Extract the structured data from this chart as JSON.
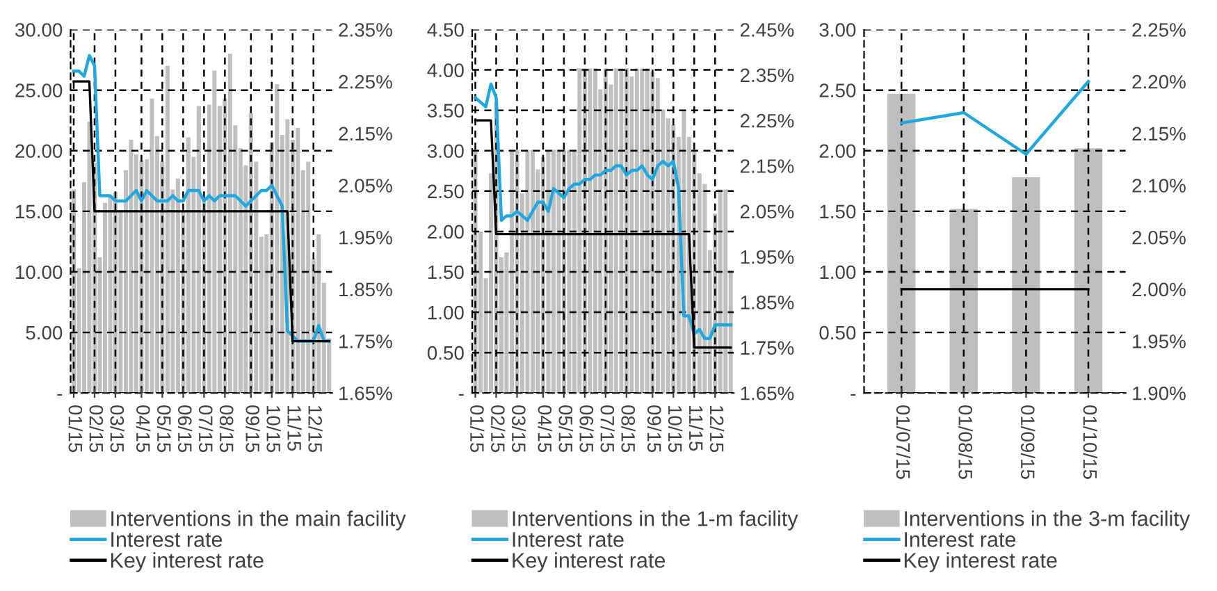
{
  "chart_data": [
    {
      "type": "bar",
      "categories": [
        "01/15",
        null,
        null,
        null,
        "02/15",
        null,
        null,
        null,
        "03/15",
        null,
        null,
        null,
        null,
        "04/15",
        null,
        null,
        null,
        "05/15",
        null,
        null,
        null,
        "06/15",
        null,
        null,
        null,
        "07/15",
        null,
        null,
        null,
        "08/15",
        null,
        null,
        null,
        null,
        "09/15",
        null,
        null,
        null,
        "10/15",
        null,
        null,
        null,
        "11/15",
        null,
        null,
        null,
        "12/15",
        null,
        null,
        null
      ],
      "series": [
        {
          "name": "Interventions in the main facility",
          "color": "#bfbfbf",
          "values": [
            16.8,
            10.3,
            17.4,
            22.4,
            19.0,
            11.2,
            15.7,
            16.2,
            16.6,
            15.0,
            18.4,
            20.9,
            19.7,
            19.2,
            19.3,
            24.3,
            21.2,
            19.1,
            27.0,
            16.8,
            17.7,
            15.0,
            21.1,
            19.5,
            23.7,
            15.8,
            23.8,
            26.6,
            23.7,
            24.3,
            28.0,
            22.1,
            20.2,
            18.8,
            23.1,
            19.1,
            12.9,
            13.1,
            20.7,
            25.5,
            21.3,
            22.6,
            20.9,
            21.9,
            18.4,
            19.1,
            11.1,
            13.1,
            9.1,
            4.5
          ]
        },
        {
          "name": "Interest rate",
          "type": "line",
          "axis": "y2",
          "color": "#1fa7e0",
          "values": [
            2.27,
            2.27,
            2.26,
            2.3,
            2.28,
            2.03,
            2.03,
            2.03,
            2.02,
            2.02,
            2.02,
            2.03,
            2.04,
            2.02,
            2.04,
            2.03,
            2.02,
            2.02,
            2.02,
            2.03,
            2.02,
            2.02,
            2.04,
            2.04,
            2.04,
            2.02,
            2.03,
            2.02,
            2.03,
            2.03,
            2.03,
            2.03,
            2.02,
            2.01,
            2.02,
            2.03,
            2.04,
            2.04,
            2.05,
            2.03,
            2.01,
            1.77,
            1.76,
            1.75,
            1.75,
            1.75,
            1.75,
            1.78,
            1.75,
            1.75
          ]
        },
        {
          "name": "Key interest rate",
          "type": "line",
          "axis": "y2",
          "color": "#000000",
          "values": [
            2.25,
            2.25,
            2.25,
            2.25,
            2.0,
            2.0,
            2.0,
            2.0,
            2.0,
            2.0,
            2.0,
            2.0,
            2.0,
            2.0,
            2.0,
            2.0,
            2.0,
            2.0,
            2.0,
            2.0,
            2.0,
            2.0,
            2.0,
            2.0,
            2.0,
            2.0,
            2.0,
            2.0,
            2.0,
            2.0,
            2.0,
            2.0,
            2.0,
            2.0,
            2.0,
            2.0,
            2.0,
            2.0,
            2.0,
            2.0,
            2.0,
            2.0,
            1.75,
            1.75,
            1.75,
            1.75,
            1.75,
            1.75,
            1.75,
            1.75
          ]
        }
      ],
      "ylim": [
        0,
        30
      ],
      "yticks": [
        {
          "value": 0,
          "label": "-"
        },
        {
          "value": 5,
          "label": "5.00"
        },
        {
          "value": 10,
          "label": "10.00"
        },
        {
          "value": 15,
          "label": "15.00"
        },
        {
          "value": 20,
          "label": "20.00"
        },
        {
          "value": 25,
          "label": "25.00"
        },
        {
          "value": 30,
          "label": "30.00"
        }
      ],
      "y2lim": [
        1.65,
        2.35
      ],
      "y2ticks": [
        {
          "value": 1.65,
          "label": "1.65%"
        },
        {
          "value": 1.75,
          "label": "1.75%"
        },
        {
          "value": 1.85,
          "label": "1.85%"
        },
        {
          "value": 1.95,
          "label": "1.95%"
        },
        {
          "value": 2.05,
          "label": "2.05%"
        },
        {
          "value": 2.15,
          "label": "2.15%"
        },
        {
          "value": 2.25,
          "label": "2.25%"
        },
        {
          "value": 2.35,
          "label": "2.35%"
        }
      ],
      "grid": true,
      "legend": "bottom"
    },
    {
      "type": "bar",
      "categories": [
        "01/15",
        null,
        null,
        null,
        "02/15",
        null,
        null,
        null,
        "03/15",
        null,
        null,
        null,
        null,
        "04/15",
        null,
        null,
        null,
        "05/15",
        null,
        null,
        null,
        "06/15",
        null,
        null,
        null,
        "07/15",
        null,
        null,
        null,
        "08/15",
        null,
        null,
        null,
        null,
        "09/15",
        null,
        null,
        null,
        "10/15",
        null,
        null,
        null,
        "11/15",
        null,
        null,
        null,
        "12/15",
        null,
        null,
        null
      ],
      "series": [
        {
          "name": "Interventions in the 1-m facility",
          "color": "#bfbfbf",
          "values": [
            3.01,
            2.0,
            1.42,
            2.72,
            3.6,
            1.68,
            1.74,
            3.01,
            3.01,
            2.47,
            3.01,
            3.01,
            2.77,
            2.92,
            3.01,
            3.01,
            3.01,
            3.01,
            3.01,
            3.01,
            4.02,
            4.02,
            4.02,
            4.02,
            3.76,
            4.02,
            3.82,
            4.02,
            4.02,
            4.02,
            3.92,
            4.02,
            4.02,
            4.02,
            3.98,
            3.9,
            3.51,
            3.4,
            3.32,
            3.17,
            3.51,
            3.17,
            3.01,
            2.72,
            2.59,
            1.77,
            2.22,
            2.52,
            2.52,
            1.52
          ]
        },
        {
          "name": "Interest rate",
          "type": "line",
          "axis": "y2",
          "color": "#1fa7e0",
          "values": [
            2.3,
            2.29,
            2.28,
            2.33,
            2.3,
            2.03,
            2.04,
            2.04,
            2.05,
            2.04,
            2.03,
            2.05,
            2.07,
            2.07,
            2.05,
            2.1,
            2.09,
            2.08,
            2.1,
            2.11,
            2.11,
            2.12,
            2.12,
            2.13,
            2.13,
            2.14,
            2.14,
            2.15,
            2.15,
            2.13,
            2.14,
            2.14,
            2.15,
            2.13,
            2.12,
            2.15,
            2.16,
            2.15,
            2.16,
            2.1,
            1.82,
            1.82,
            1.78,
            1.79,
            1.77,
            1.77,
            1.8,
            1.8,
            1.8,
            1.8
          ]
        },
        {
          "name": "Key interest rate",
          "type": "line",
          "axis": "y2",
          "color": "#000000",
          "values": [
            2.25,
            2.25,
            2.25,
            2.25,
            2.0,
            2.0,
            2.0,
            2.0,
            2.0,
            2.0,
            2.0,
            2.0,
            2.0,
            2.0,
            2.0,
            2.0,
            2.0,
            2.0,
            2.0,
            2.0,
            2.0,
            2.0,
            2.0,
            2.0,
            2.0,
            2.0,
            2.0,
            2.0,
            2.0,
            2.0,
            2.0,
            2.0,
            2.0,
            2.0,
            2.0,
            2.0,
            2.0,
            2.0,
            2.0,
            2.0,
            2.0,
            2.0,
            1.75,
            1.75,
            1.75,
            1.75,
            1.75,
            1.75,
            1.75,
            1.75
          ]
        }
      ],
      "ylim": [
        0,
        4.5
      ],
      "yticks": [
        {
          "value": 0,
          "label": "-"
        },
        {
          "value": 0.5,
          "label": "0.50"
        },
        {
          "value": 1,
          "label": "1.00"
        },
        {
          "value": 1.5,
          "label": "1.50"
        },
        {
          "value": 2,
          "label": "2.00"
        },
        {
          "value": 2.5,
          "label": "2.50"
        },
        {
          "value": 3,
          "label": "3.00"
        },
        {
          "value": 3.5,
          "label": "3.50"
        },
        {
          "value": 4,
          "label": "4.00"
        },
        {
          "value": 4.5,
          "label": "4.50"
        }
      ],
      "y2lim": [
        1.65,
        2.45
      ],
      "y2ticks": [
        {
          "value": 1.65,
          "label": "1.65%"
        },
        {
          "value": 1.75,
          "label": "1.75%"
        },
        {
          "value": 1.85,
          "label": "1.85%"
        },
        {
          "value": 1.95,
          "label": "1.95%"
        },
        {
          "value": 2.05,
          "label": "2.05%"
        },
        {
          "value": 2.15,
          "label": "2.15%"
        },
        {
          "value": 2.25,
          "label": "2.25%"
        },
        {
          "value": 2.35,
          "label": "2.35%"
        },
        {
          "value": 2.45,
          "label": "2.45%"
        }
      ],
      "grid": true,
      "legend": "bottom"
    },
    {
      "type": "bar",
      "categories": [
        "01/07/15",
        "01/08/15",
        "01/09/15",
        "01/10/15"
      ],
      "series": [
        {
          "name": "Interventions in the 3-m facility",
          "color": "#bfbfbf",
          "values": [
            2.47,
            1.52,
            1.78,
            2.02
          ]
        },
        {
          "name": "Interest rate",
          "type": "line",
          "axis": "y2",
          "color": "#1fa7e0",
          "values": [
            2.16,
            2.17,
            2.13,
            2.2
          ]
        },
        {
          "name": "Key interest rate",
          "type": "line",
          "axis": "y2",
          "color": "#000000",
          "values": [
            2.0,
            2.0,
            2.0,
            2.0
          ]
        }
      ],
      "ylim": [
        0,
        3
      ],
      "yticks": [
        {
          "value": 0,
          "label": "-"
        },
        {
          "value": 0.5,
          "label": "0.50"
        },
        {
          "value": 1,
          "label": "1.00"
        },
        {
          "value": 1.5,
          "label": "1.50"
        },
        {
          "value": 2,
          "label": "2.00"
        },
        {
          "value": 2.5,
          "label": "2.50"
        },
        {
          "value": 3,
          "label": "3.00"
        }
      ],
      "y2lim": [
        1.9,
        2.25
      ],
      "y2ticks": [
        {
          "value": 1.9,
          "label": "1.90%"
        },
        {
          "value": 1.95,
          "label": "1.95%"
        },
        {
          "value": 2.0,
          "label": "2.00%"
        },
        {
          "value": 2.05,
          "label": "2.05%"
        },
        {
          "value": 2.1,
          "label": "2.10%"
        },
        {
          "value": 2.15,
          "label": "2.15%"
        },
        {
          "value": 2.2,
          "label": "2.20%"
        },
        {
          "value": 2.25,
          "label": "2.25%"
        }
      ],
      "grid": true,
      "legend": "bottom"
    }
  ]
}
